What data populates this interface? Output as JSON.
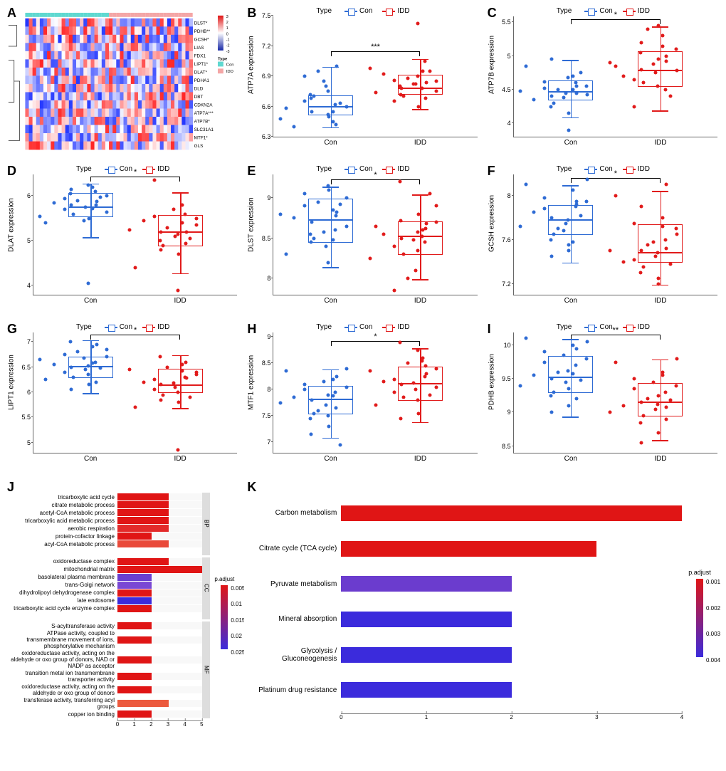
{
  "colors": {
    "con": "#2e6bd4",
    "idd": "#e11b1b",
    "axis": "#666666",
    "text": "#000000",
    "heatmap_low": "#1728a6",
    "heatmap_mid": "#ffffff",
    "heatmap_high": "#e01515",
    "type_con": "#5fd8d0",
    "type_idd": "#f4a6a6"
  },
  "legend": {
    "title": "Type",
    "con": "Con",
    "idd": "IDD"
  },
  "panels": {
    "A": {
      "label": "A",
      "genes": [
        "DLST*",
        "PDHB**",
        "GCSH*",
        "LIAS",
        "FDX1",
        "LIPT1*",
        "DLAT*",
        "PDHA1",
        "DLD",
        "DBT",
        "CDKN2A",
        "ATP7A***",
        "ATP7B*",
        "SLC31A1",
        "MTF1*",
        "GLS"
      ],
      "legend_title": "Type",
      "scale_ticks": [
        3,
        2,
        1,
        0,
        -1,
        -2,
        -3
      ],
      "n_samples": 46,
      "con_count": 23,
      "idd_count": 23
    },
    "B": {
      "label": "B",
      "ylab": "ATP7A expression",
      "sig": "***",
      "ymin": 6.3,
      "ymax": 7.5,
      "yticks": [
        6.3,
        6.6,
        6.9,
        7.2,
        7.5
      ],
      "con": {
        "q1": 6.52,
        "med": 6.62,
        "q3": 6.72,
        "wlo": 6.4,
        "whi": 7.0
      },
      "idd": {
        "q1": 6.72,
        "med": 6.8,
        "q3": 6.92,
        "wlo": 6.58,
        "whi": 7.08
      },
      "con_pts": [
        6.55,
        6.6,
        6.7,
        6.45,
        6.8,
        6.5,
        6.62,
        6.95,
        6.58,
        6.4,
        6.72,
        6.65,
        6.48,
        6.68,
        6.9,
        6.52,
        6.6,
        6.75,
        6.42,
        6.85,
        6.63,
        6.55,
        7.0
      ],
      "idd_pts": [
        6.78,
        6.85,
        6.7,
        6.95,
        6.82,
        6.6,
        7.05,
        6.88,
        6.74,
        6.92,
        6.8,
        6.65,
        6.98,
        6.72,
        6.86,
        7.42,
        6.75,
        6.9,
        6.68,
        6.82,
        6.95,
        6.78,
        6.84
      ]
    },
    "C": {
      "label": "C",
      "ylab": "ATP7B expression",
      "sig": "*",
      "ymin": 3.8,
      "ymax": 5.6,
      "yticks": [
        4.0,
        4.5,
        5.0,
        5.5
      ],
      "con": {
        "q1": 4.35,
        "med": 4.5,
        "q3": 4.65,
        "wlo": 4.1,
        "whi": 4.95
      },
      "idd": {
        "q1": 4.55,
        "med": 4.82,
        "q3": 5.08,
        "wlo": 4.2,
        "whi": 5.45
      },
      "con_pts": [
        4.4,
        4.55,
        4.3,
        4.7,
        4.45,
        4.15,
        4.6,
        4.5,
        4.85,
        4.35,
        4.25,
        4.62,
        4.48,
        4.95,
        4.52,
        3.9,
        4.42,
        4.68,
        4.55,
        4.38,
        4.75,
        4.5,
        4.45
      ],
      "idd_pts": [
        4.8,
        5.1,
        4.6,
        5.3,
        4.75,
        4.95,
        4.5,
        5.4,
        4.85,
        4.7,
        5.05,
        4.25,
        4.9,
        5.2,
        4.65,
        5.45,
        4.78,
        4.55,
        5.0,
        4.88,
        4.4,
        5.15,
        4.92
      ]
    },
    "D": {
      "label": "D",
      "ylab": "DLAT expression",
      "sig": "*",
      "ymin": 3.8,
      "ymax": 6.5,
      "yticks": [
        4,
        5,
        6
      ],
      "con": {
        "q1": 5.55,
        "med": 5.8,
        "q3": 6.08,
        "wlo": 5.1,
        "whi": 6.3
      },
      "idd": {
        "q1": 4.9,
        "med": 5.25,
        "q3": 5.6,
        "wlo": 4.3,
        "whi": 6.1
      },
      "con_pts": [
        5.8,
        6.0,
        5.6,
        6.2,
        5.75,
        5.5,
        6.1,
        5.9,
        5.4,
        5.85,
        6.05,
        5.7,
        5.55,
        6.15,
        5.95,
        4.05,
        5.65,
        6.25,
        5.8,
        5.45,
        5.98,
        5.72,
        5.88
      ],
      "idd_pts": [
        5.2,
        5.5,
        4.9,
        5.8,
        5.1,
        4.7,
        5.6,
        5.3,
        4.4,
        5.45,
        5.0,
        6.35,
        5.25,
        4.8,
        5.55,
        3.9,
        5.35,
        5.15,
        4.95,
        5.7,
        5.05,
        5.4,
        5.2
      ]
    },
    "E": {
      "label": "E",
      "ylab": "DLST expression",
      "sig": "*",
      "ymin": 7.8,
      "ymax": 9.3,
      "yticks": [
        8.0,
        8.5,
        9.0
      ],
      "con": {
        "q1": 8.45,
        "med": 8.75,
        "q3": 9.0,
        "wlo": 8.15,
        "whi": 9.15
      },
      "idd": {
        "q1": 8.3,
        "med": 8.55,
        "q3": 8.72,
        "wlo": 8.0,
        "whi": 9.05
      },
      "con_pts": [
        8.7,
        9.0,
        8.5,
        8.85,
        8.4,
        9.1,
        8.6,
        8.95,
        8.3,
        8.75,
        8.55,
        9.05,
        8.8,
        8.45,
        8.9,
        8.2,
        8.65,
        9.15,
        8.78,
        8.58,
        8.92,
        8.48,
        8.82
      ],
      "idd_pts": [
        8.5,
        8.7,
        8.3,
        8.6,
        8.1,
        8.8,
        8.45,
        8.0,
        8.65,
        8.55,
        9.2,
        8.4,
        8.25,
        8.72,
        7.85,
        8.58,
        8.9,
        8.35,
        8.62,
        8.48,
        9.05,
        8.52,
        8.68
      ]
    },
    "F": {
      "label": "F",
      "ylab": "GCSH expression",
      "sig": "*",
      "ymin": 7.1,
      "ymax": 8.2,
      "yticks": [
        7.2,
        7.6,
        8.0
      ],
      "con": {
        "q1": 7.65,
        "med": 7.8,
        "q3": 7.92,
        "wlo": 7.4,
        "whi": 8.1
      },
      "idd": {
        "q1": 7.4,
        "med": 7.5,
        "q3": 7.75,
        "wlo": 7.2,
        "whi": 8.05
      },
      "con_pts": [
        7.8,
        7.95,
        7.65,
        8.05,
        7.75,
        7.5,
        7.9,
        7.7,
        8.1,
        7.85,
        7.6,
        7.98,
        7.72,
        7.45,
        7.88,
        7.55,
        8.15,
        7.78,
        7.92,
        7.68,
        7.82,
        7.58,
        7.95
      ],
      "idd_pts": [
        7.5,
        7.7,
        7.35,
        7.8,
        7.45,
        7.25,
        7.6,
        7.55,
        8.0,
        7.4,
        7.3,
        7.75,
        7.5,
        7.9,
        7.42,
        7.2,
        7.65,
        7.48,
        8.1,
        7.58,
        7.38,
        7.72,
        7.52
      ]
    },
    "G": {
      "label": "G",
      "ylab": "LIPT1 expression",
      "sig": "*",
      "ymin": 4.8,
      "ymax": 7.2,
      "yticks": [
        5.0,
        5.5,
        6.0,
        6.5,
        7.0
      ],
      "con": {
        "q1": 6.3,
        "med": 6.55,
        "q3": 6.72,
        "wlo": 6.0,
        "whi": 7.05
      },
      "idd": {
        "q1": 6.0,
        "med": 6.18,
        "q3": 6.48,
        "wlo": 5.7,
        "whi": 6.75
      },
      "con_pts": [
        6.5,
        6.7,
        6.3,
        6.9,
        6.45,
        6.15,
        6.6,
        6.8,
        6.25,
        6.55,
        7.0,
        6.4,
        6.65,
        6.05,
        6.75,
        6.35,
        6.85,
        6.52,
        6.2,
        6.68,
        6.48,
        6.58,
        6.95
      ],
      "idd_pts": [
        6.15,
        6.4,
        5.95,
        6.55,
        6.1,
        5.8,
        6.3,
        6.5,
        5.7,
        6.2,
        6.7,
        6.05,
        6.45,
        5.85,
        6.25,
        4.85,
        6.35,
        6.0,
        6.6,
        6.18,
        5.9,
        6.42,
        6.28
      ]
    },
    "H": {
      "label": "H",
      "ylab": "MTF1 expression",
      "sig": "*",
      "ymin": 6.8,
      "ymax": 9.1,
      "yticks": [
        7.0,
        7.5,
        8.0,
        8.5,
        9.0
      ],
      "con": {
        "q1": 7.55,
        "med": 7.85,
        "q3": 8.08,
        "wlo": 7.1,
        "whi": 8.4
      },
      "idd": {
        "q1": 7.8,
        "med": 8.15,
        "q3": 8.45,
        "wlo": 7.4,
        "whi": 8.8
      },
      "con_pts": [
        7.8,
        8.05,
        7.55,
        8.2,
        7.7,
        7.3,
        7.95,
        7.6,
        8.35,
        7.85,
        7.45,
        8.1,
        7.75,
        7.15,
        8.0,
        7.5,
        8.4,
        7.9,
        7.65,
        8.15,
        6.95,
        7.88,
        8.25
      ],
      "idd_pts": [
        8.1,
        8.4,
        7.85,
        8.6,
        8.0,
        7.55,
        8.25,
        8.5,
        7.7,
        8.15,
        8.9,
        7.95,
        8.35,
        7.45,
        8.2,
        8.75,
        8.05,
        7.8,
        8.45,
        8.12,
        7.9,
        8.55,
        8.3
      ]
    },
    "I": {
      "label": "I",
      "ylab": "PDHB expression",
      "sig": "**",
      "ymin": 8.4,
      "ymax": 10.2,
      "yticks": [
        8.5,
        9.0,
        9.5,
        10.0
      ],
      "con": {
        "q1": 9.3,
        "med": 9.55,
        "q3": 9.85,
        "wlo": 8.95,
        "whi": 10.1
      },
      "idd": {
        "q1": 8.95,
        "med": 9.18,
        "q3": 9.45,
        "wlo": 8.6,
        "whi": 9.8
      },
      "con_pts": [
        9.5,
        9.8,
        9.3,
        10.0,
        9.45,
        9.1,
        9.7,
        9.6,
        10.1,
        9.55,
        9.25,
        9.9,
        9.4,
        9.0,
        9.75,
        9.35,
        10.05,
        9.62,
        9.2,
        9.85,
        9.48,
        9.58,
        9.95
      ],
      "idd_pts": [
        9.15,
        9.4,
        8.95,
        9.6,
        9.05,
        8.7,
        9.3,
        9.2,
        9.75,
        9.1,
        8.85,
        9.5,
        9.0,
        8.55,
        9.35,
        9.25,
        9.8,
        9.12,
        8.9,
        9.45,
        9.18,
        9.55,
        9.08
      ]
    }
  },
  "panelJ": {
    "label": "J",
    "padjust_label": "p.adjust",
    "padjust_ticks": [
      0.005,
      0.01,
      0.015,
      0.02,
      0.025
    ],
    "padjust_lo_color": "#e01515",
    "padjust_hi_color": "#3b2bdc",
    "xticks": [
      0,
      1,
      2,
      3,
      4,
      5
    ],
    "groups": [
      {
        "tag": "BP",
        "items": [
          {
            "name": "tricarboxylic acid cycle",
            "val": 3,
            "col": "#e01515"
          },
          {
            "name": "citrate metabolic process",
            "val": 3,
            "col": "#e01515"
          },
          {
            "name": "acetyl-CoA metabolic process",
            "val": 3,
            "col": "#e01515"
          },
          {
            "name": "tricarboxylic acid metabolic process",
            "val": 3,
            "col": "#e01515"
          },
          {
            "name": "aerobic respiration",
            "val": 3,
            "col": "#e32a2a"
          },
          {
            "name": "protein-cofactor linkage",
            "val": 2,
            "col": "#e01515"
          },
          {
            "name": "acyl-CoA metabolic process",
            "val": 3,
            "col": "#e94a3a"
          }
        ]
      },
      {
        "tag": "CC",
        "items": [
          {
            "name": "oxidoreductase complex",
            "val": 3,
            "col": "#e01515"
          },
          {
            "name": "mitochondrial matrix",
            "val": 5,
            "col": "#e01515"
          },
          {
            "name": "basolateral plasma membrane",
            "val": 2,
            "col": "#6a3fd0"
          },
          {
            "name": "trans-Golgi network",
            "val": 2,
            "col": "#7a48d4"
          },
          {
            "name": "dihydrolipoyl dehydrogenase complex",
            "val": 2,
            "col": "#e01515"
          },
          {
            "name": "late endosome",
            "val": 2,
            "col": "#3b2bdc"
          },
          {
            "name": "tricarboxylic acid cycle enzyme complex",
            "val": 2,
            "col": "#e01515"
          }
        ]
      },
      {
        "tag": "MF",
        "items": [
          {
            "name": "S-acyltransferase activity",
            "val": 2,
            "col": "#e01515"
          },
          {
            "name": "ATPase activity, coupled to transmembrane movement of ions, phosphorylative mechanism",
            "val": 2,
            "col": "#e01515"
          },
          {
            "name": "oxidoreductase activity, acting on the aldehyde or oxo group of donors, NAD or NADP as acceptor",
            "val": 2,
            "col": "#e01515"
          },
          {
            "name": "transition metal ion transmembrane transporter activity",
            "val": 2,
            "col": "#e01515"
          },
          {
            "name": "oxidoreductase activity, acting on the aldehyde or oxo group of donors",
            "val": 2,
            "col": "#e01515"
          },
          {
            "name": "transferase activity, transferring acyl groups",
            "val": 3,
            "col": "#ec5a3e"
          },
          {
            "name": "copper ion binding",
            "val": 2,
            "col": "#e01515"
          }
        ]
      }
    ]
  },
  "panelK": {
    "label": "K",
    "padjust_label": "p.adjust",
    "padjust_ticks": [
      0.001,
      0.002,
      0.003,
      0.004
    ],
    "padjust_lo_color": "#e01515",
    "padjust_hi_color": "#3b2bdc",
    "xticks": [
      0,
      1,
      2,
      3,
      4
    ],
    "items": [
      {
        "name": "Carbon metabolism",
        "val": 4,
        "col": "#e01515"
      },
      {
        "name": "Citrate cycle (TCA cycle)",
        "val": 3,
        "col": "#e01515"
      },
      {
        "name": "Pyruvate metabolism",
        "val": 2,
        "col": "#6b3cce"
      },
      {
        "name": "Mineral absorption",
        "val": 2,
        "col": "#3b2bdc"
      },
      {
        "name": "Glycolysis / Gluconeogenesis",
        "val": 2,
        "col": "#3b2bdc"
      },
      {
        "name": "Platinum drug resistance",
        "val": 2,
        "col": "#3b2bdc"
      }
    ]
  }
}
